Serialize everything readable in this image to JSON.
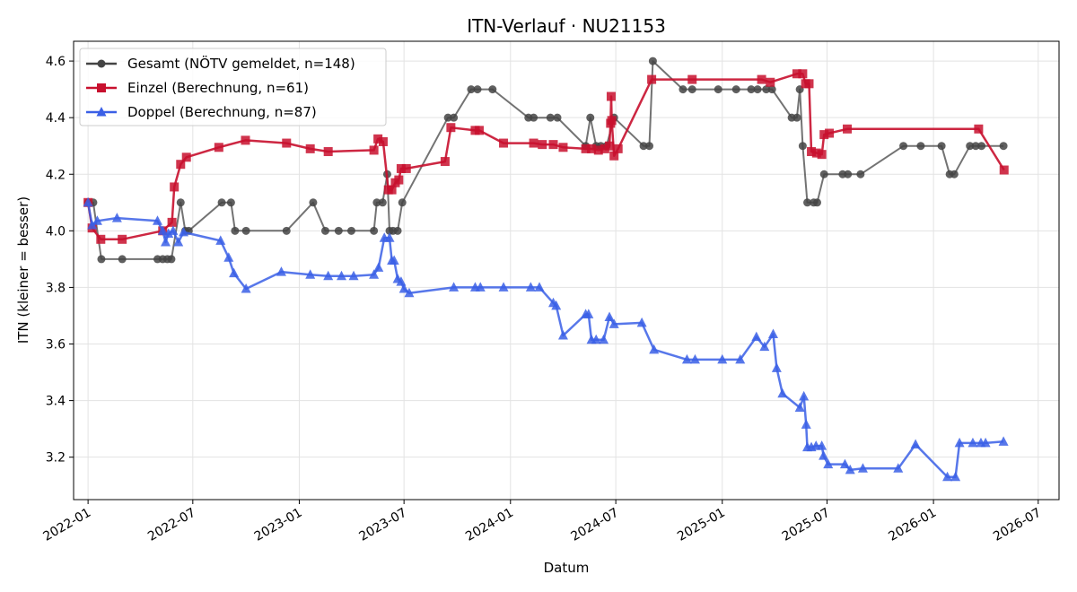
{
  "chart_data": {
    "type": "line",
    "title": "ITN-Verlauf · NU21153",
    "xlabel": "Datum",
    "ylabel": "ITN  (kleiner = besser)",
    "xlim": [
      "2021-12-07",
      "2026-08-06"
    ],
    "ylim": [
      3.05,
      4.67
    ],
    "xticks": [
      "2022-01",
      "2022-07",
      "2023-01",
      "2023-07",
      "2024-01",
      "2024-07",
      "2025-01",
      "2025-07",
      "2026-01",
      "2026-07"
    ],
    "yticks": [
      "3.2",
      "3.4",
      "3.6",
      "3.8",
      "4.0",
      "4.2",
      "4.4",
      "4.6"
    ],
    "grid": true,
    "legend_position": "upper left",
    "series": [
      {
        "name": "Gesamt (NÖTV gemeldet, n=148)",
        "color": "#444444",
        "marker": "circle",
        "points": [
          [
            "2022-01-01",
            4.1
          ],
          [
            "2022-01-10",
            4.1
          ],
          [
            "2022-01-24",
            3.9
          ],
          [
            "2022-03-01",
            3.9
          ],
          [
            "2022-05-01",
            3.9
          ],
          [
            "2022-05-10",
            3.9
          ],
          [
            "2022-05-18",
            3.9
          ],
          [
            "2022-05-25",
            3.9
          ],
          [
            "2022-06-10",
            4.1
          ],
          [
            "2022-06-18",
            4.0
          ],
          [
            "2022-06-24",
            4.0
          ],
          [
            "2022-08-20",
            4.1
          ],
          [
            "2022-09-05",
            4.1
          ],
          [
            "2022-09-12",
            4.0
          ],
          [
            "2022-10-01",
            4.0
          ],
          [
            "2022-12-10",
            4.0
          ],
          [
            "2023-01-25",
            4.1
          ],
          [
            "2023-02-15",
            4.0
          ],
          [
            "2023-03-10",
            4.0
          ],
          [
            "2023-04-01",
            4.0
          ],
          [
            "2023-05-10",
            4.0
          ],
          [
            "2023-05-15",
            4.1
          ],
          [
            "2023-05-25",
            4.1
          ],
          [
            "2023-06-02",
            4.2
          ],
          [
            "2023-06-06",
            4.0
          ],
          [
            "2023-06-12",
            4.0
          ],
          [
            "2023-06-20",
            4.0
          ],
          [
            "2023-06-28",
            4.1
          ],
          [
            "2023-09-15",
            4.4
          ],
          [
            "2023-09-25",
            4.4
          ],
          [
            "2023-10-25",
            4.5
          ],
          [
            "2023-11-05",
            4.5
          ],
          [
            "2023-12-01",
            4.5
          ],
          [
            "2024-02-01",
            4.4
          ],
          [
            "2024-02-10",
            4.4
          ],
          [
            "2024-03-10",
            4.4
          ],
          [
            "2024-03-22",
            4.4
          ],
          [
            "2024-05-10",
            4.3
          ],
          [
            "2024-05-18",
            4.4
          ],
          [
            "2024-05-28",
            4.3
          ],
          [
            "2024-06-05",
            4.3
          ],
          [
            "2024-06-15",
            4.3
          ],
          [
            "2024-06-28",
            4.4
          ],
          [
            "2024-08-18",
            4.3
          ],
          [
            "2024-08-28",
            4.3
          ],
          [
            "2024-09-03",
            4.6
          ],
          [
            "2024-10-25",
            4.5
          ],
          [
            "2024-11-10",
            4.5
          ],
          [
            "2024-12-25",
            4.5
          ],
          [
            "2025-01-25",
            4.5
          ],
          [
            "2025-02-20",
            4.5
          ],
          [
            "2025-03-03",
            4.5
          ],
          [
            "2025-03-18",
            4.5
          ],
          [
            "2025-03-28",
            4.5
          ],
          [
            "2025-05-01",
            4.4
          ],
          [
            "2025-05-10",
            4.4
          ],
          [
            "2025-05-15",
            4.5
          ],
          [
            "2025-05-20",
            4.3
          ],
          [
            "2025-05-28",
            4.1
          ],
          [
            "2025-06-08",
            4.1
          ],
          [
            "2025-06-14",
            4.1
          ],
          [
            "2025-06-26",
            4.2
          ],
          [
            "2025-07-28",
            4.2
          ],
          [
            "2025-08-06",
            4.2
          ],
          [
            "2025-08-28",
            4.2
          ],
          [
            "2025-11-10",
            4.3
          ],
          [
            "2025-12-10",
            4.3
          ],
          [
            "2026-01-15",
            4.3
          ],
          [
            "2026-01-29",
            4.2
          ],
          [
            "2026-02-06",
            4.2
          ],
          [
            "2026-03-05",
            4.3
          ],
          [
            "2026-03-15",
            4.3
          ],
          [
            "2026-03-25",
            4.3
          ],
          [
            "2026-05-02",
            4.3
          ]
        ]
      },
      {
        "name": "Einzel (Berechnung, n=61)",
        "color": "#c8102e",
        "marker": "square",
        "points": [
          [
            "2022-01-01",
            4.1
          ],
          [
            "2022-01-08",
            4.01
          ],
          [
            "2022-01-23",
            3.97
          ],
          [
            "2022-03-01",
            3.97
          ],
          [
            "2022-05-10",
            4.0
          ],
          [
            "2022-05-26",
            4.03
          ],
          [
            "2022-05-30",
            4.155
          ],
          [
            "2022-06-10",
            4.235
          ],
          [
            "2022-06-20",
            4.26
          ],
          [
            "2022-08-15",
            4.295
          ],
          [
            "2022-09-30",
            4.32
          ],
          [
            "2022-12-10",
            4.31
          ],
          [
            "2023-01-20",
            4.29
          ],
          [
            "2023-02-20",
            4.28
          ],
          [
            "2023-05-10",
            4.285
          ],
          [
            "2023-05-17",
            4.325
          ],
          [
            "2023-05-26",
            4.315
          ],
          [
            "2023-06-04",
            4.145
          ],
          [
            "2023-06-10",
            4.145
          ],
          [
            "2023-06-16",
            4.17
          ],
          [
            "2023-06-22",
            4.18
          ],
          [
            "2023-06-26",
            4.22
          ],
          [
            "2023-07-05",
            4.22
          ],
          [
            "2023-09-10",
            4.245
          ],
          [
            "2023-09-20",
            4.365
          ],
          [
            "2023-11-01",
            4.355
          ],
          [
            "2023-11-08",
            4.355
          ],
          [
            "2023-12-20",
            4.31
          ],
          [
            "2024-02-10",
            4.31
          ],
          [
            "2024-02-25",
            4.305
          ],
          [
            "2024-03-15",
            4.305
          ],
          [
            "2024-04-01",
            4.295
          ],
          [
            "2024-05-10",
            4.29
          ],
          [
            "2024-05-20",
            4.29
          ],
          [
            "2024-06-01",
            4.285
          ],
          [
            "2024-06-12",
            4.29
          ],
          [
            "2024-06-20",
            4.3
          ],
          [
            "2024-06-22",
            4.38
          ],
          [
            "2024-06-23",
            4.475
          ],
          [
            "2024-06-24",
            4.39
          ],
          [
            "2024-06-28",
            4.265
          ],
          [
            "2024-07-05",
            4.29
          ],
          [
            "2024-09-01",
            4.535
          ],
          [
            "2024-11-10",
            4.535
          ],
          [
            "2025-03-10",
            4.535
          ],
          [
            "2025-03-25",
            4.525
          ],
          [
            "2025-05-10",
            4.555
          ],
          [
            "2025-05-20",
            4.555
          ],
          [
            "2025-05-25",
            4.52
          ],
          [
            "2025-05-31",
            4.52
          ],
          [
            "2025-06-04",
            4.28
          ],
          [
            "2025-06-13",
            4.275
          ],
          [
            "2025-06-22",
            4.27
          ],
          [
            "2025-06-26",
            4.34
          ],
          [
            "2025-07-05",
            4.345
          ],
          [
            "2025-08-05",
            4.36
          ],
          [
            "2026-03-20",
            4.36
          ],
          [
            "2026-05-03",
            4.215
          ]
        ]
      },
      {
        "name": "Doppel (Berechnung, n=87)",
        "color": "#3a5fe6",
        "marker": "triangle",
        "points": [
          [
            "2022-01-01",
            4.1
          ],
          [
            "2022-01-08",
            4.02
          ],
          [
            "2022-01-17",
            4.035
          ],
          [
            "2022-02-20",
            4.045
          ],
          [
            "2022-05-01",
            4.035
          ],
          [
            "2022-05-10",
            4.0
          ],
          [
            "2022-05-15",
            3.96
          ],
          [
            "2022-05-20",
            3.99
          ],
          [
            "2022-05-28",
            4.0
          ],
          [
            "2022-06-06",
            3.96
          ],
          [
            "2022-06-15",
            3.995
          ],
          [
            "2022-08-18",
            3.965
          ],
          [
            "2022-09-01",
            3.905
          ],
          [
            "2022-09-10",
            3.85
          ],
          [
            "2022-10-01",
            3.795
          ],
          [
            "2022-12-01",
            3.855
          ],
          [
            "2023-01-20",
            3.845
          ],
          [
            "2023-02-20",
            3.84
          ],
          [
            "2023-03-15",
            3.84
          ],
          [
            "2023-04-05",
            3.84
          ],
          [
            "2023-05-10",
            3.845
          ],
          [
            "2023-05-18",
            3.87
          ],
          [
            "2023-05-28",
            3.975
          ],
          [
            "2023-06-06",
            3.975
          ],
          [
            "2023-06-10",
            3.895
          ],
          [
            "2023-06-14",
            3.895
          ],
          [
            "2023-06-20",
            3.83
          ],
          [
            "2023-06-26",
            3.82
          ],
          [
            "2023-07-01",
            3.795
          ],
          [
            "2023-07-10",
            3.78
          ],
          [
            "2023-09-25",
            3.8
          ],
          [
            "2023-11-01",
            3.8
          ],
          [
            "2023-11-10",
            3.8
          ],
          [
            "2023-12-20",
            3.8
          ],
          [
            "2024-02-05",
            3.8
          ],
          [
            "2024-02-20",
            3.8
          ],
          [
            "2024-03-15",
            3.745
          ],
          [
            "2024-03-20",
            3.735
          ],
          [
            "2024-04-01",
            3.63
          ],
          [
            "2024-05-10",
            3.705
          ],
          [
            "2024-05-15",
            3.705
          ],
          [
            "2024-05-20",
            3.615
          ],
          [
            "2024-05-28",
            3.615
          ],
          [
            "2024-06-10",
            3.615
          ],
          [
            "2024-06-20",
            3.695
          ],
          [
            "2024-06-28",
            3.67
          ],
          [
            "2024-08-15",
            3.675
          ],
          [
            "2024-09-05",
            3.58
          ],
          [
            "2024-11-01",
            3.545
          ],
          [
            "2024-11-15",
            3.545
          ],
          [
            "2025-01-01",
            3.545
          ],
          [
            "2025-02-01",
            3.545
          ],
          [
            "2025-03-01",
            3.625
          ],
          [
            "2025-03-15",
            3.59
          ],
          [
            "2025-03-30",
            3.635
          ],
          [
            "2025-04-05",
            3.515
          ],
          [
            "2025-04-15",
            3.425
          ],
          [
            "2025-05-15",
            3.375
          ],
          [
            "2025-05-22",
            3.415
          ],
          [
            "2025-05-26",
            3.315
          ],
          [
            "2025-05-28",
            3.235
          ],
          [
            "2025-06-04",
            3.235
          ],
          [
            "2025-06-12",
            3.24
          ],
          [
            "2025-06-22",
            3.24
          ],
          [
            "2025-06-25",
            3.205
          ],
          [
            "2025-07-03",
            3.175
          ],
          [
            "2025-08-01",
            3.175
          ],
          [
            "2025-08-10",
            3.155
          ],
          [
            "2025-09-01",
            3.16
          ],
          [
            "2025-11-01",
            3.16
          ],
          [
            "2025-12-01",
            3.245
          ],
          [
            "2026-01-25",
            3.13
          ],
          [
            "2026-02-08",
            3.13
          ],
          [
            "2026-02-15",
            3.25
          ],
          [
            "2026-03-10",
            3.25
          ],
          [
            "2026-03-24",
            3.25
          ],
          [
            "2026-04-01",
            3.25
          ],
          [
            "2026-05-02",
            3.255
          ]
        ]
      }
    ]
  }
}
